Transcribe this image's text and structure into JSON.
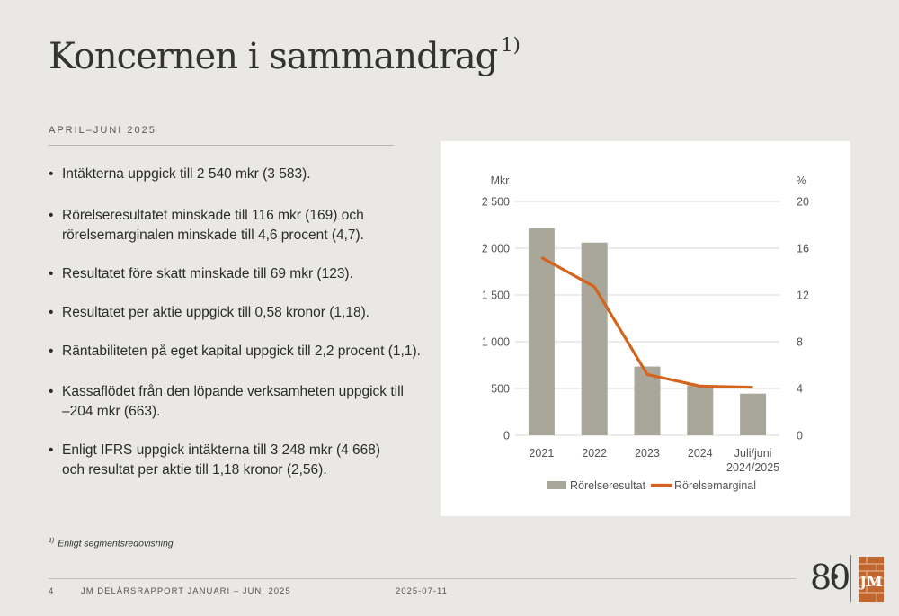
{
  "title": {
    "text": "Koncernen i sammandrag",
    "footnote_mark": "1)"
  },
  "section": {
    "label": "APRIL–JUNI 2025"
  },
  "bullets": [
    [
      "Intäkterna uppgick till 2 540 mkr (3 583)."
    ],
    [
      "Rörelseresultatet minskade till 116 mkr (169) och",
      "rörelsemarginalen minskade till 4,6 procent (4,7)."
    ],
    [
      "Resultatet före skatt minskade till 69 mkr (123)."
    ],
    [
      "Resultatet per aktie uppgick till 0,58 kronor (1,18)."
    ],
    [
      "Räntabiliteten på eget kapital uppgick till 2,2 procent (1,1)."
    ],
    [
      "Kassaflödet från den löpande verksamheten uppgick till",
      "–204 mkr (663)."
    ],
    [
      "Enligt IFRS uppgick intäkterna till 3 248 mkr (4 668)",
      "och resultat per aktie till 1,18 kronor (2,56)."
    ]
  ],
  "chart_data": {
    "type": "bar",
    "categories": [
      "2021",
      "2022",
      "2023",
      "2024",
      "Juli/juni 2024/2025"
    ],
    "category_lines": [
      [
        "2021"
      ],
      [
        "2022"
      ],
      [
        "2023"
      ],
      [
        "2024"
      ],
      [
        "Juli/juni",
        "2024/2025"
      ]
    ],
    "series": [
      {
        "name": "Rörelseresultat",
        "type": "bar",
        "axis": "left",
        "color": "#a9a79a",
        "values": [
          2215,
          2060,
          735,
          535,
          445
        ]
      },
      {
        "name": "Rörelsemarginal",
        "type": "line",
        "axis": "right",
        "color": "#d4641d",
        "values": [
          15.2,
          12.7,
          5.2,
          4.2,
          4.1
        ]
      }
    ],
    "y_left": {
      "label": "Mkr",
      "lim": [
        0,
        2500
      ],
      "ticks": [
        0,
        500,
        1000,
        1500,
        2000,
        2500
      ],
      "tick_labels": [
        "0",
        "500",
        "1 000",
        "1 500",
        "2 000",
        "2 500"
      ]
    },
    "y_right": {
      "label": "%",
      "lim": [
        0,
        20
      ],
      "ticks": [
        0,
        4,
        8,
        12,
        16,
        20
      ],
      "tick_labels": [
        "0",
        "4",
        "8",
        "12",
        "16",
        "20"
      ]
    },
    "grid": true,
    "legend": "bottom"
  },
  "footnote": {
    "mark": "1)",
    "text": "Enligt segmentsredovisning"
  },
  "footer": {
    "page": "4",
    "report": "JM DELÅRSRAPPORT JANUARI – JUNI 2025",
    "date": "2025-07-11"
  },
  "logo": {
    "anniversary": "80",
    "brand": "JM"
  }
}
